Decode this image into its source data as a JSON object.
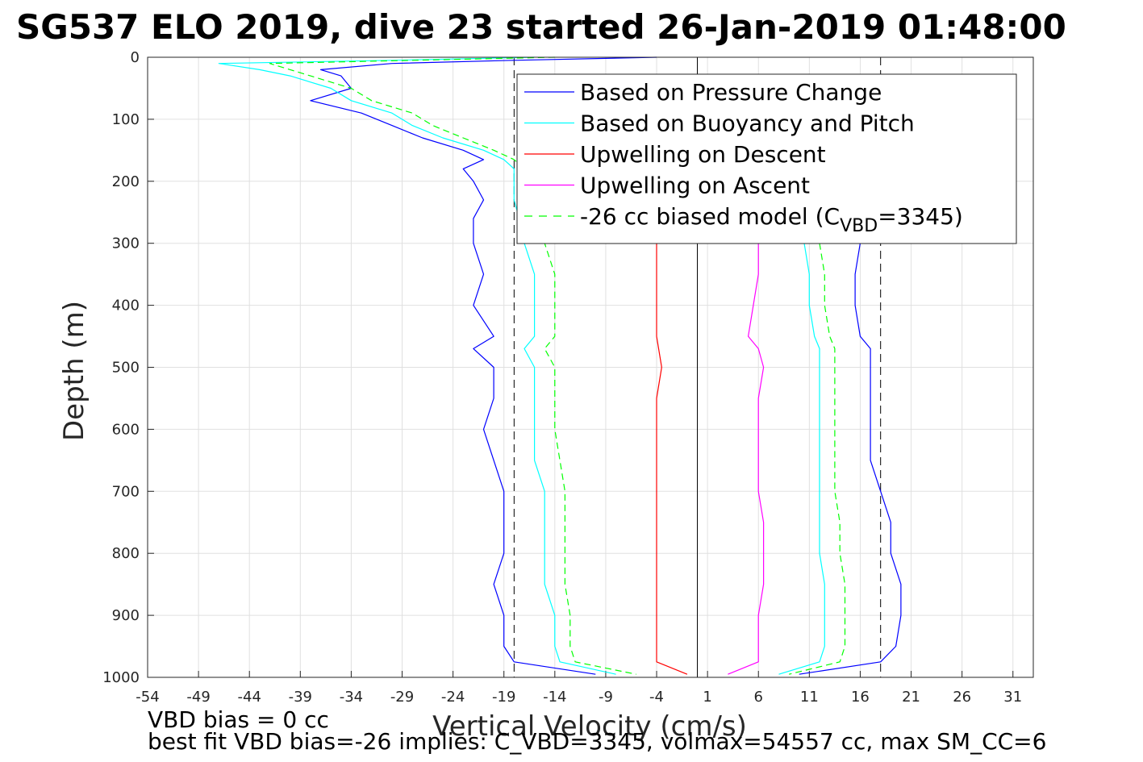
{
  "chart_data": {
    "type": "line",
    "title": "SG537 ELO 2019, dive 23 started 26-Jan-2019 01:48:00",
    "xlabel": "Vertical Velocity (cm/s)",
    "ylabel": "Depth (m)",
    "xlim": [
      -54,
      33
    ],
    "ylim": [
      1000,
      0
    ],
    "y_reversed": true,
    "grid": true,
    "legend_position": "top-right",
    "xticks": [
      -54,
      -49,
      -44,
      -39,
      -34,
      -29,
      -24,
      -19,
      -14,
      -9,
      -4,
      1,
      6,
      11,
      16,
      21,
      26,
      31
    ],
    "yticks": [
      0,
      100,
      200,
      300,
      400,
      500,
      600,
      700,
      800,
      900,
      1000
    ],
    "reference_lines": {
      "vertical_solid": 0,
      "vertical_dashed": [
        -18,
        18
      ]
    },
    "legend": [
      {
        "label": "Based on Pressure Change",
        "color": "#0000ff",
        "style": "solid"
      },
      {
        "label": "Based on Buoyancy and Pitch",
        "color": "#00ffff",
        "style": "solid"
      },
      {
        "label": "Upwelling on Descent",
        "color": "#ff0000",
        "style": "solid"
      },
      {
        "label": "Upwelling on Ascent",
        "color": "#ff00ff",
        "style": "solid"
      },
      {
        "label": "-26 cc biased model (C",
        "sub": "VBD",
        "suffix": "=3345)",
        "color": "#00ff00",
        "style": "dashed"
      }
    ],
    "series": [
      {
        "name": "Based on Pressure Change",
        "part": "descent",
        "color": "#0000ff",
        "dashed": false,
        "depth": [
          0,
          5,
          10,
          20,
          30,
          50,
          70,
          90,
          110,
          130,
          150,
          165,
          180,
          200,
          230,
          260,
          300,
          350,
          400,
          450,
          470,
          500,
          550,
          600,
          650,
          700,
          750,
          800,
          850,
          900,
          950,
          975,
          995
        ],
        "velocity": [
          -4,
          -18,
          -30,
          -37,
          -35,
          -34,
          -38,
          -33,
          -30,
          -27,
          -23,
          -21,
          -23,
          -22,
          -21,
          -22,
          -22,
          -21,
          -22,
          -20,
          -22,
          -20,
          -20,
          -21,
          -20,
          -19,
          -19,
          -19,
          -20,
          -19,
          -19,
          -18,
          -10
        ]
      },
      {
        "name": "Based on Buoyancy and Pitch",
        "part": "descent",
        "color": "#00ffff",
        "dashed": false,
        "depth": [
          0,
          5,
          10,
          20,
          30,
          50,
          70,
          90,
          110,
          130,
          150,
          165,
          180,
          200,
          230,
          260,
          300,
          350,
          400,
          450,
          470,
          500,
          550,
          600,
          650,
          700,
          750,
          800,
          850,
          900,
          950,
          975,
          995
        ],
        "velocity": [
          -16,
          -30,
          -47,
          -43,
          -40,
          -36,
          -34,
          -30,
          -28,
          -25,
          -21,
          -19,
          -18,
          -18,
          -18,
          -17.5,
          -17,
          -16,
          -16,
          -16,
          -17,
          -16,
          -16,
          -16,
          -16,
          -15,
          -15,
          -15,
          -15,
          -14,
          -14,
          -13.5,
          -8
        ]
      },
      {
        "name": "-26 cc biased model",
        "part": "descent",
        "color": "#00ff00",
        "dashed": true,
        "depth": [
          0,
          5,
          10,
          20,
          30,
          50,
          70,
          90,
          110,
          130,
          150,
          165,
          180,
          200,
          230,
          260,
          300,
          350,
          400,
          450,
          470,
          500,
          550,
          600,
          650,
          700,
          750,
          800,
          850,
          900,
          950,
          975,
          995
        ],
        "velocity": [
          -14,
          -28,
          -42,
          -40,
          -38,
          -34,
          -32,
          -28,
          -26,
          -23,
          -20,
          -18,
          -17,
          -16,
          -15.5,
          -15,
          -15,
          -14,
          -14,
          -14,
          -15,
          -14,
          -14,
          -14,
          -13.5,
          -13,
          -13,
          -13,
          -13,
          -12.5,
          -12.5,
          -12,
          -6
        ]
      },
      {
        "name": "Upwelling on Descent",
        "part": "descent",
        "color": "#ff0000",
        "dashed": false,
        "depth": [
          300,
          350,
          400,
          450,
          500,
          550,
          600,
          650,
          700,
          750,
          800,
          850,
          900,
          950,
          975,
          995
        ],
        "velocity": [
          -4,
          -4,
          -4,
          -4,
          -3.5,
          -4,
          -4,
          -4,
          -4,
          -4,
          -4,
          -4,
          -4,
          -4,
          -4,
          -1
        ]
      },
      {
        "name": "Based on Pressure Change",
        "part": "ascent",
        "color": "#0000ff",
        "dashed": false,
        "depth": [
          300,
          350,
          400,
          450,
          470,
          500,
          550,
          600,
          650,
          700,
          750,
          800,
          850,
          900,
          950,
          975,
          995
        ],
        "velocity": [
          16,
          15.5,
          15.5,
          16,
          17,
          17,
          17,
          17,
          17,
          18,
          19,
          19,
          20,
          20,
          19.5,
          18,
          10
        ]
      },
      {
        "name": "Based on Buoyancy and Pitch",
        "part": "ascent",
        "color": "#00ffff",
        "dashed": false,
        "depth": [
          300,
          350,
          400,
          450,
          470,
          500,
          550,
          600,
          650,
          700,
          750,
          800,
          850,
          900,
          950,
          975,
          995
        ],
        "velocity": [
          10.5,
          11,
          11,
          11.5,
          12,
          12,
          12,
          12,
          12,
          12,
          12,
          12,
          12.5,
          12.5,
          12.5,
          12,
          8
        ]
      },
      {
        "name": "-26 cc biased model",
        "part": "ascent",
        "color": "#00ff00",
        "dashed": true,
        "depth": [
          300,
          350,
          400,
          450,
          470,
          500,
          550,
          600,
          650,
          700,
          750,
          800,
          850,
          900,
          950,
          975,
          995
        ],
        "velocity": [
          12,
          12.5,
          12.5,
          13,
          13.5,
          13.5,
          13.5,
          13.5,
          13.5,
          13.5,
          14,
          14,
          14.5,
          14.5,
          14.5,
          14,
          9
        ]
      },
      {
        "name": "Upwelling on Ascent",
        "part": "ascent",
        "color": "#ff00ff",
        "dashed": false,
        "depth": [
          300,
          350,
          400,
          450,
          470,
          500,
          550,
          600,
          650,
          700,
          750,
          800,
          850,
          900,
          950,
          975,
          995
        ],
        "velocity": [
          6,
          6,
          5.5,
          5,
          6,
          6.5,
          6,
          6,
          6,
          6,
          6.5,
          6.5,
          6.5,
          6,
          6,
          6,
          3
        ]
      }
    ]
  },
  "notes": {
    "line1": "VBD bias = 0 cc",
    "line2": "best fit VBD bias=-26 implies: C_VBD=3345, volmax=54557 cc, max SM_CC=6"
  }
}
